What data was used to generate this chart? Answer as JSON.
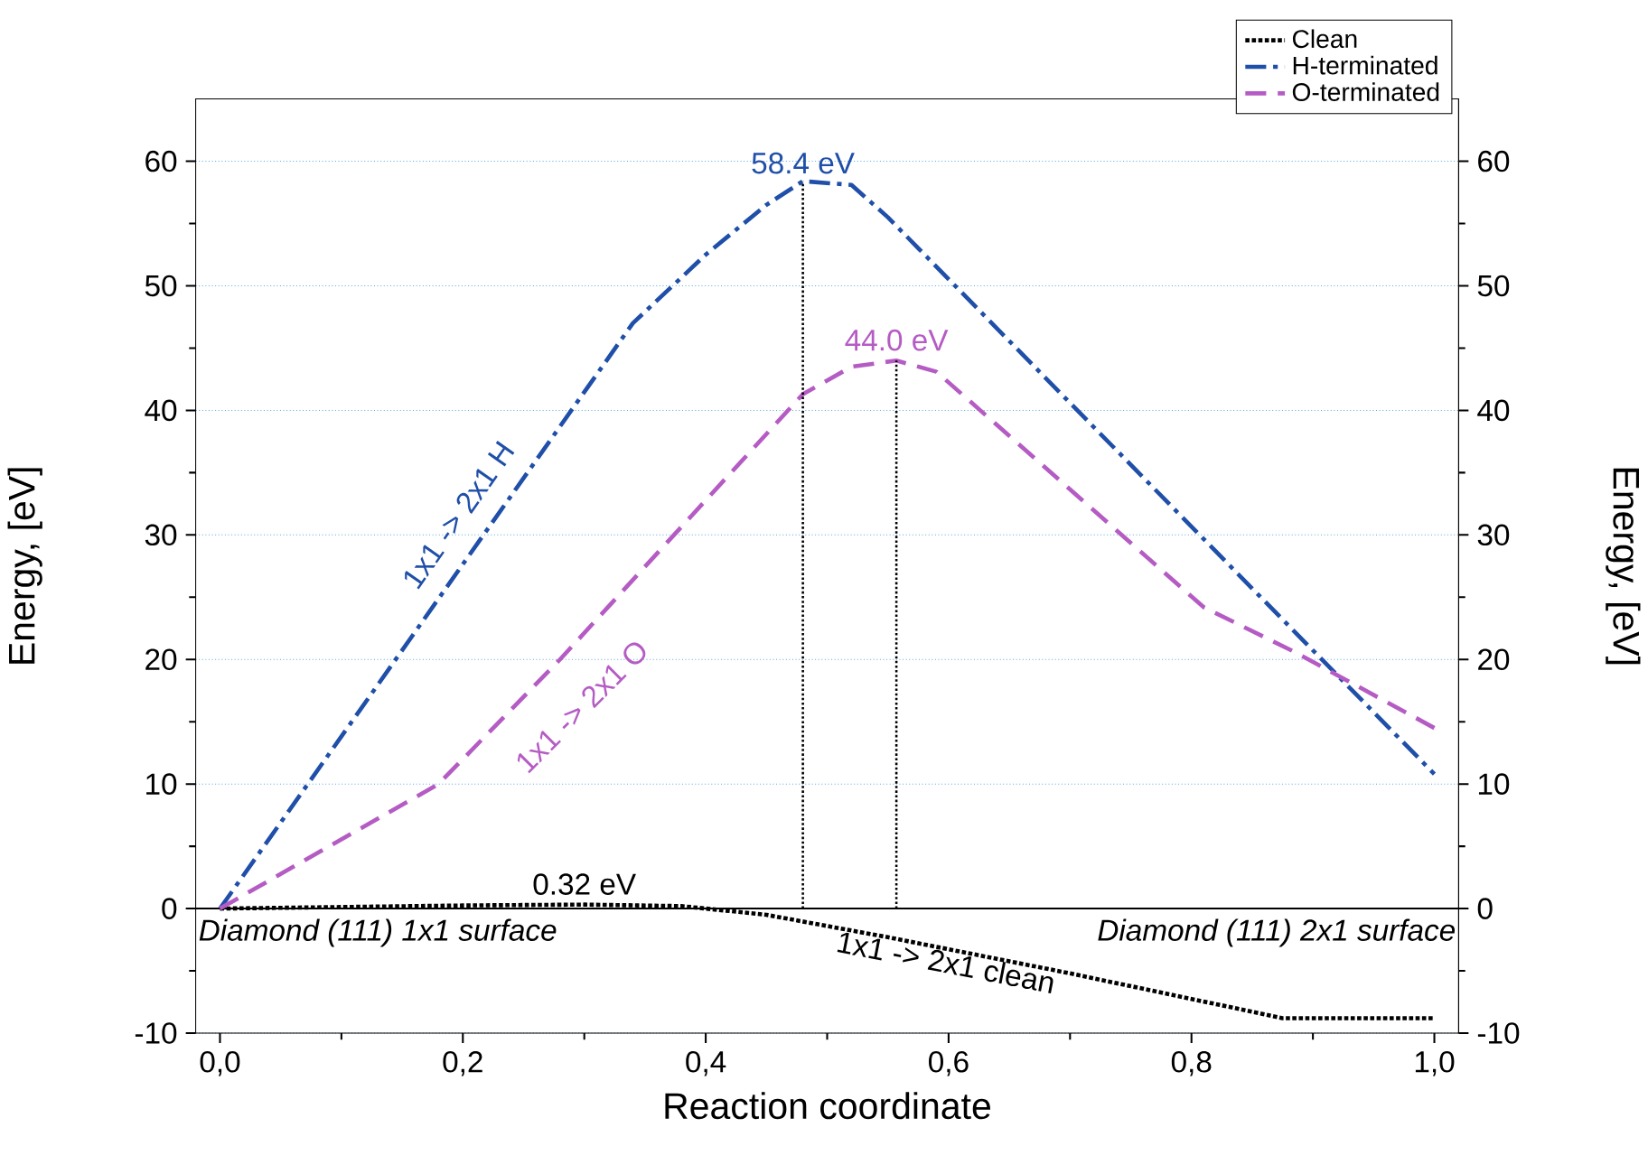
{
  "chart_data": {
    "type": "line",
    "xlabel": "Reaction coordinate",
    "ylabel": "Energy, [eV]",
    "y2label": "Energy, [eV]",
    "xlim": [
      -0.02,
      1.02
    ],
    "ylim": [
      -10,
      65
    ],
    "y2lim": [
      -10,
      65
    ],
    "xticks": [
      {
        "value": 0,
        "label": "0,0"
      },
      {
        "value": 0.2,
        "label": "0,2"
      },
      {
        "value": 0.4,
        "label": "0,4"
      },
      {
        "value": 0.6,
        "label": "0,6"
      },
      {
        "value": 0.8,
        "label": "0,8"
      },
      {
        "value": 1.0,
        "label": "1,0"
      }
    ],
    "yticks": [
      -10,
      0,
      10,
      20,
      30,
      40,
      50,
      60
    ],
    "y2ticks": [
      -10,
      0,
      10,
      20,
      30,
      40,
      50,
      60
    ],
    "grid": "y",
    "legend": "top right",
    "ref_lines": [
      {
        "axis": "y",
        "value": 0,
        "color": "#000000",
        "line_style": "solid"
      }
    ],
    "series": [
      {
        "name": "Clean",
        "color": "#000000",
        "line_style": "dotted",
        "x": [
          0,
          0.2,
          0.3,
          0.38,
          0.45,
          0.55,
          0.7,
          0.875,
          1.0
        ],
        "values": [
          0,
          0.25,
          0.32,
          0.2,
          -0.5,
          -2.3,
          -5.2,
          -8.8,
          -8.8
        ]
      },
      {
        "name": "H-terminated",
        "color": "#1f4fa8",
        "line_style": "dashdot",
        "x": [
          0,
          0.34,
          0.4,
          0.45,
          0.48,
          0.52,
          0.55,
          1.0
        ],
        "values": [
          0,
          47,
          52.5,
          56.5,
          58.4,
          58.1,
          55.5,
          10.8
        ]
      },
      {
        "name": "O-terminated",
        "color": "#b55cc4",
        "line_style": "dashed",
        "x": [
          0,
          0.18,
          0.28,
          0.48,
          0.52,
          0.557,
          0.59,
          0.81,
          0.885,
          1.0
        ],
        "values": [
          0,
          10,
          20,
          41.3,
          43.5,
          44.0,
          43.1,
          24.2,
          20.6,
          14.5
        ]
      },
      {
        "color": "#000000",
        "line_style": "dotted",
        "x": [
          0.48,
          0.48
        ],
        "values": [
          0,
          58.4
        ]
      },
      {
        "color": "#000000",
        "line_style": "dotted",
        "x": [
          0.557,
          0.557
        ],
        "values": [
          0,
          44.0
        ]
      }
    ],
    "annotations": [
      {
        "text": "58.4 eV",
        "x": 0.48,
        "y": 58.4
      },
      {
        "text": "44.0 eV",
        "x": 0.557,
        "y": 44.0
      },
      {
        "text": "0.32 eV",
        "x": 0.3,
        "y": 0.32
      },
      "1x1 -> 2x1 H",
      "1x1 -> 2x1 O",
      "1x1 -> 2x1 clean",
      "Diamond (111) 1x1 surface",
      "Diamond (111) 2x1 surface"
    ]
  }
}
